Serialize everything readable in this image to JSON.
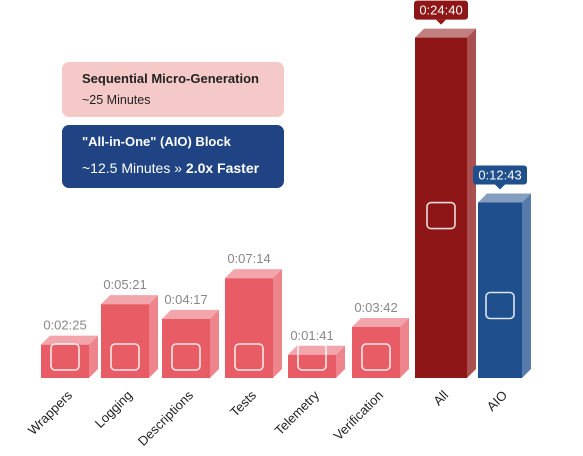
{
  "chart_data": {
    "type": "bar",
    "categories": [
      "Wrappers",
      "Logging",
      "Descriptions",
      "Tests",
      "Telemetry",
      "Verification",
      "All",
      "AIO"
    ],
    "values": [
      145,
      321,
      257,
      434,
      101,
      222,
      1480,
      763
    ],
    "value_labels": [
      "0:02:25",
      "0:05:21",
      "0:04:17",
      "0:07:14",
      "0:01:41",
      "0:03:42",
      "0:24:40",
      "0:12:43"
    ],
    "colors": [
      "#e85c66",
      "#e85c66",
      "#e85c66",
      "#e85c66",
      "#e85c66",
      "#e85c66",
      "#8e1616",
      "#1f4f8d"
    ],
    "legend": [
      {
        "title": "Sequential Micro-Generation",
        "subtitle": "~25 Minutes",
        "color": "#f6c9c9"
      },
      {
        "title": "\"All-in-One\" (AIO) Block",
        "subtitle": "~12.5 Minutes »",
        "highlight": "2.0x Faster",
        "color": "#1f4383"
      }
    ]
  }
}
